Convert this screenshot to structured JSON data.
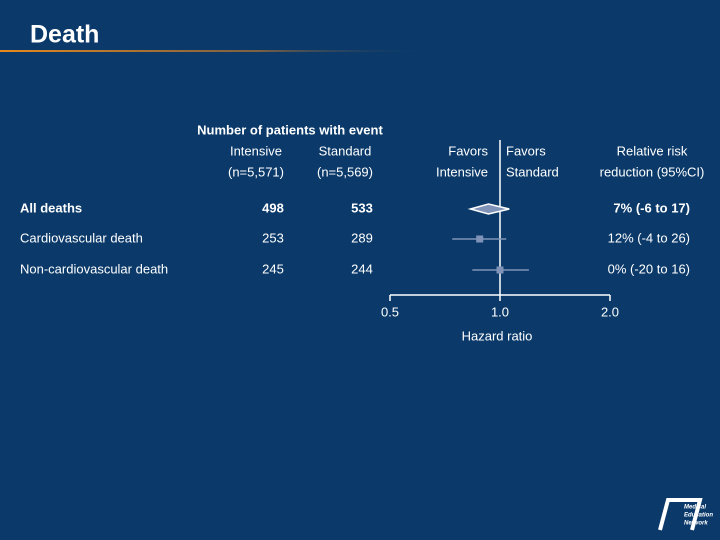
{
  "chart_data": {
    "type": "forest",
    "title": "Death",
    "header": {
      "group": "Number of patients with event",
      "columns": [
        {
          "name": "Intensive",
          "n": "(n=5,571)"
        },
        {
          "name": "Standard",
          "n": "(n=5,569)"
        }
      ],
      "favors_left": [
        "Favors",
        "Intensive"
      ],
      "favors_right": [
        "Favors",
        "Standard"
      ],
      "effect": [
        "Relative risk",
        "reduction (95%CI)"
      ]
    },
    "rows": [
      {
        "label": "All deaths",
        "intensive": 498,
        "standard": 533,
        "effect_label": "7% (-6 to 17)",
        "hr": 0.93,
        "ci": [
          0.83,
          1.06
        ],
        "summary": true
      },
      {
        "label": "Cardiovascular death",
        "intensive": 253,
        "standard": 289,
        "effect_label": "12% (-4 to 26)",
        "hr": 0.88,
        "ci": [
          0.74,
          1.04
        ],
        "summary": false
      },
      {
        "label": "Non-cardiovascular death",
        "intensive": 245,
        "standard": 244,
        "effect_label": "0% (-20 to 16)",
        "hr": 1.0,
        "ci": [
          0.84,
          1.2
        ],
        "summary": false
      }
    ],
    "xlabel": "Hazard ratio",
    "xlim": [
      0.5,
      2.0
    ],
    "xticks": [
      0.5,
      {
        "value": 1,
        "label": "1.0"
      },
      {
        "value": 2,
        "label": "2.0"
      }
    ],
    "xscale": "log",
    "reference": 1,
    "color": "#7f93b8",
    "logo": [
      "Medical",
      "Education",
      "Network"
    ]
  }
}
